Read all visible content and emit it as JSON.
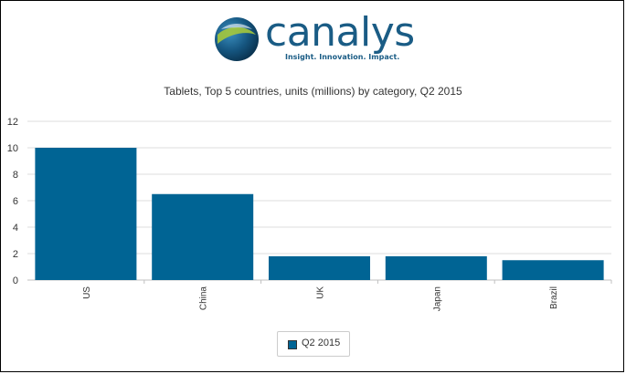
{
  "logo": {
    "wordmark": "canalys",
    "tagline": "Insight. Innovation. Impact."
  },
  "colors": {
    "bar": "#006494",
    "brand": "#1a5c85",
    "grid": "#dddddd",
    "text": "#333333"
  },
  "chart_data": {
    "type": "bar",
    "title": "Tablets, Top 5 countries, units (millions) by category, Q2 2015",
    "categories": [
      "US",
      "China",
      "UK",
      "Japan",
      "Brazil"
    ],
    "series": [
      {
        "name": "Q2 2015",
        "values": [
          10.0,
          6.5,
          1.8,
          1.8,
          1.5
        ]
      }
    ],
    "ylim": [
      0,
      12
    ],
    "yticks": [
      0,
      2,
      4,
      6,
      8,
      10,
      12
    ],
    "grid": true,
    "legend": "bottom-center"
  }
}
